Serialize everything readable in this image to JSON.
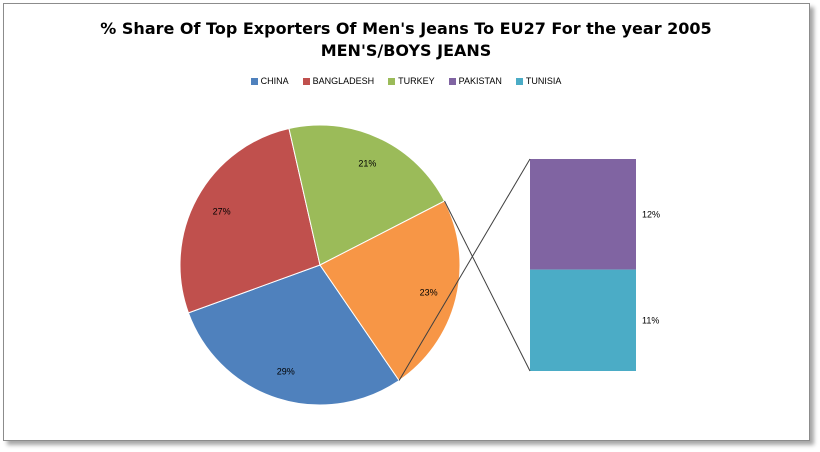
{
  "chart_data": {
    "type": "pie",
    "subtype": "bar-of-pie",
    "title": "% Share Of Top Exporters Of Men's Jeans To EU27 For the year 2005",
    "subtitle": "MEN'S/BOYS JEANS",
    "legend": [
      "CHINA",
      "BANGLADESH",
      "TURKEY",
      "PAKISTAN",
      "TUNISIA"
    ],
    "legend_position": "top",
    "pie_slices": [
      {
        "category": "CHINA",
        "value": 29,
        "label": "29%",
        "color": "#4f81bd"
      },
      {
        "category": "BANGLADESH",
        "value": 27,
        "label": "27%",
        "color": "#c0504d"
      },
      {
        "category": "TURKEY",
        "value": 21,
        "label": "21%",
        "color": "#9bbb59"
      },
      {
        "value": 23,
        "label": "23%",
        "color": "#f79646"
      }
    ],
    "bar_segments": [
      {
        "category": "PAKISTAN",
        "value": 12,
        "label": "12%",
        "color": "#8064a2"
      },
      {
        "category": "TUNISIA",
        "value": 11,
        "label": "11%",
        "color": "#4bacc6"
      }
    ]
  }
}
